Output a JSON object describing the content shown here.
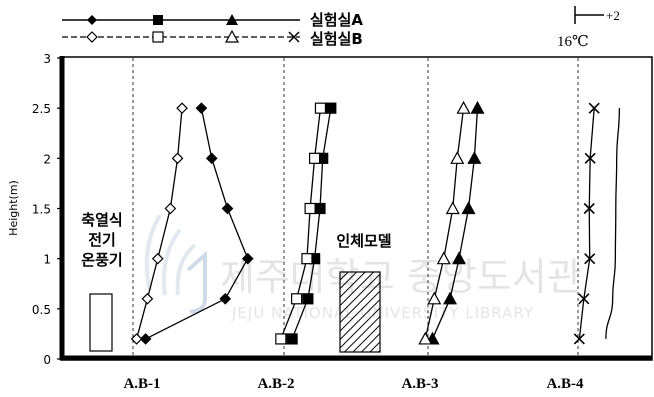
{
  "chart_data": {
    "type": "line",
    "ylabel": "Height(m)",
    "ylim": [
      0,
      3
    ],
    "yticks": [
      "0",
      "0.5",
      "1",
      "1.5",
      "2",
      "2.5",
      "3"
    ],
    "stations": [
      "A.B-1",
      "A.B-2",
      "A.B-3",
      "A.B-4"
    ],
    "legend": {
      "row1": "실험실A",
      "row2": "실험실B",
      "scale_label": "+2",
      "scale_base": "16℃"
    },
    "annotations": {
      "heater": [
        "축열식",
        "전기",
        "온풍기"
      ],
      "mannequin": "인체모델"
    },
    "watermark": {
      "korean": "제주대학교 중앙도서관",
      "english": "JEJU NATIONAL UNIVERSITY LIBRARY"
    },
    "series": [
      {
        "name": "실험실A",
        "station": "A.B-1",
        "marker": "diamond-filled",
        "heights": [
          0.2,
          0.6,
          1.0,
          1.5,
          2.0,
          2.5
        ],
        "delta": [
          0.28,
          2.05,
          2.55,
          2.1,
          1.75,
          1.52
        ]
      },
      {
        "name": "실험실B",
        "station": "A.B-1",
        "marker": "diamond-open",
        "heights": [
          0.2,
          0.6,
          1.0,
          1.5,
          2.0,
          2.5
        ],
        "delta": [
          0.08,
          0.32,
          0.55,
          0.83,
          0.99,
          1.09
        ]
      },
      {
        "name": "실험실A",
        "station": "A.B-2",
        "marker": "square-filled",
        "heights": [
          0.2,
          0.6,
          1.0,
          1.5,
          2.0,
          2.5
        ],
        "delta": [
          0.18,
          0.53,
          0.68,
          0.8,
          0.86,
          1.04
        ]
      },
      {
        "name": "실험실B",
        "station": "A.B-2",
        "marker": "square-open",
        "heights": [
          0.2,
          0.6,
          1.0,
          1.5,
          2.0,
          2.5
        ],
        "delta": [
          -0.07,
          0.28,
          0.51,
          0.58,
          0.68,
          0.81
        ]
      },
      {
        "name": "실험실A",
        "station": "A.B-3",
        "marker": "triangle-filled",
        "heights": [
          0.2,
          0.6,
          1.0,
          1.5,
          2.0,
          2.5
        ],
        "delta": [
          0.1,
          0.49,
          0.69,
          0.9,
          1.03,
          1.1
        ]
      },
      {
        "name": "실험실B",
        "station": "A.B-3",
        "marker": "triangle-open",
        "heights": [
          0.2,
          0.6,
          1.0,
          1.5,
          2.0,
          2.5
        ],
        "delta": [
          -0.06,
          0.14,
          0.35,
          0.55,
          0.65,
          0.79
        ]
      },
      {
        "name": "실험실B",
        "station": "A.B-4",
        "marker": "x",
        "heights": [
          0.2,
          0.6,
          1.0,
          1.5,
          2.0,
          2.5
        ],
        "delta": [
          0.03,
          0.13,
          0.26,
          0.25,
          0.27,
          0.36
        ]
      },
      {
        "name": "실험실A",
        "station": "A.B-4",
        "marker": "none",
        "heights": [
          0.2,
          0.6,
          1.0,
          1.5,
          2.0,
          2.5
        ],
        "delta": [
          0.62,
          0.77,
          0.83,
          0.84,
          0.86,
          0.92
        ]
      }
    ]
  }
}
